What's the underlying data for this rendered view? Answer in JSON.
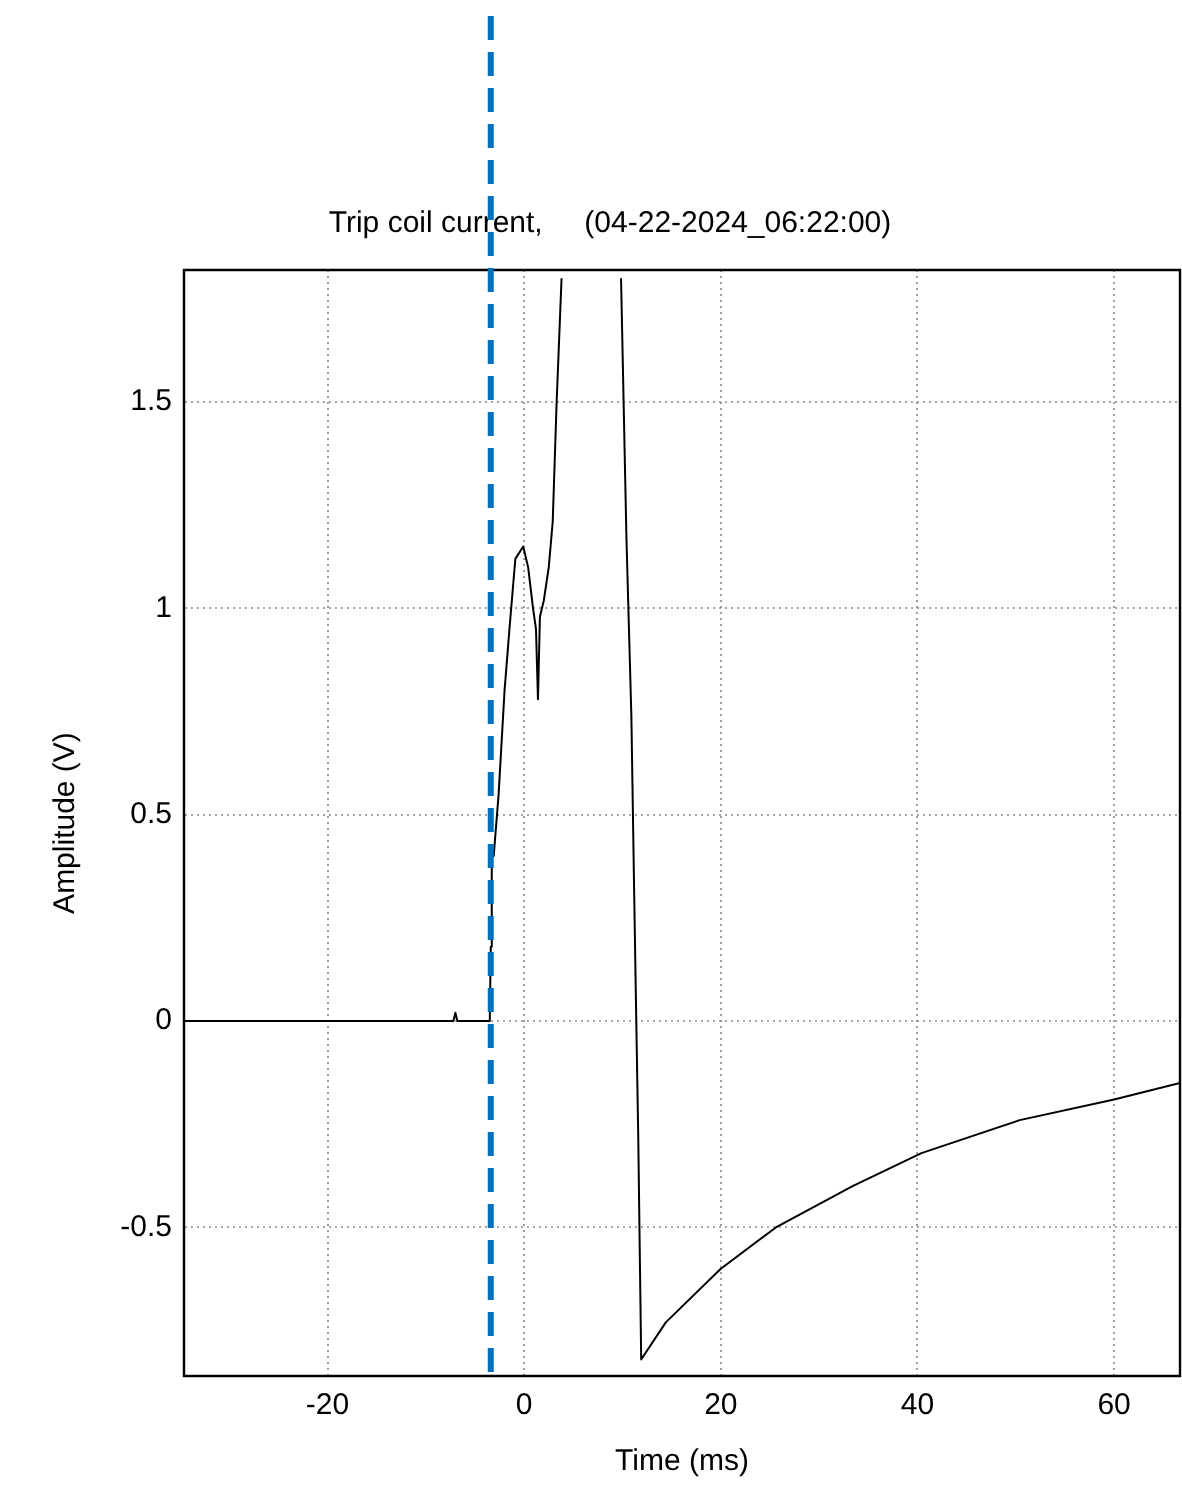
{
  "chart_data": {
    "type": "line",
    "title": "Trip coil current,     (04-22-2024_06:22:00)",
    "xlabel": "Time (ms)",
    "ylabel": "Amplitude (V)",
    "x": [
      -34.6,
      -7.2,
      -7,
      -6.8,
      -3.5,
      -3.4,
      -3.3,
      -3.1,
      -2.6,
      -2.0,
      -1.5,
      -0.9,
      -0.1,
      0.4,
      0.9,
      1.2,
      1.4,
      1.6,
      2.0,
      2.5,
      2.9,
      3.3,
      3.8,
      6.8,
      9.85,
      10.4,
      10.9,
      11.2,
      11.4,
      11.6,
      11.9,
      14.4,
      20,
      25.6,
      33.4,
      40.4,
      50.4,
      60,
      66.7
    ],
    "values": [
      0,
      0,
      0.02,
      0,
      0,
      0.18,
      0.4,
      0.4,
      0.55,
      0.8,
      0.95,
      1.12,
      1.15,
      1.1,
      1.0,
      0.95,
      0.78,
      0.98,
      1.02,
      1.1,
      1.21,
      1.5,
      1.8,
      null,
      1.8,
      1.17,
      0.74,
      0.29,
      0,
      -0.28,
      -0.82,
      -0.73,
      -0.6,
      -0.5,
      -0.4,
      -0.32,
      -0.24,
      -0.19,
      -0.15
    ],
    "color": "#000000",
    "line_style": "solid",
    "xlim": [
      -34.6,
      66.7
    ],
    "ylim": [
      -0.86,
      1.82
    ],
    "xticks": [
      -20,
      0,
      20,
      40,
      60
    ],
    "yticks": [
      -0.5,
      0,
      0.5,
      1,
      1.5
    ],
    "grid": true,
    "ref_lines": [
      {
        "axis": "x",
        "value": -3.4,
        "color": "#0072bd",
        "line_style": "dashed"
      }
    ]
  }
}
